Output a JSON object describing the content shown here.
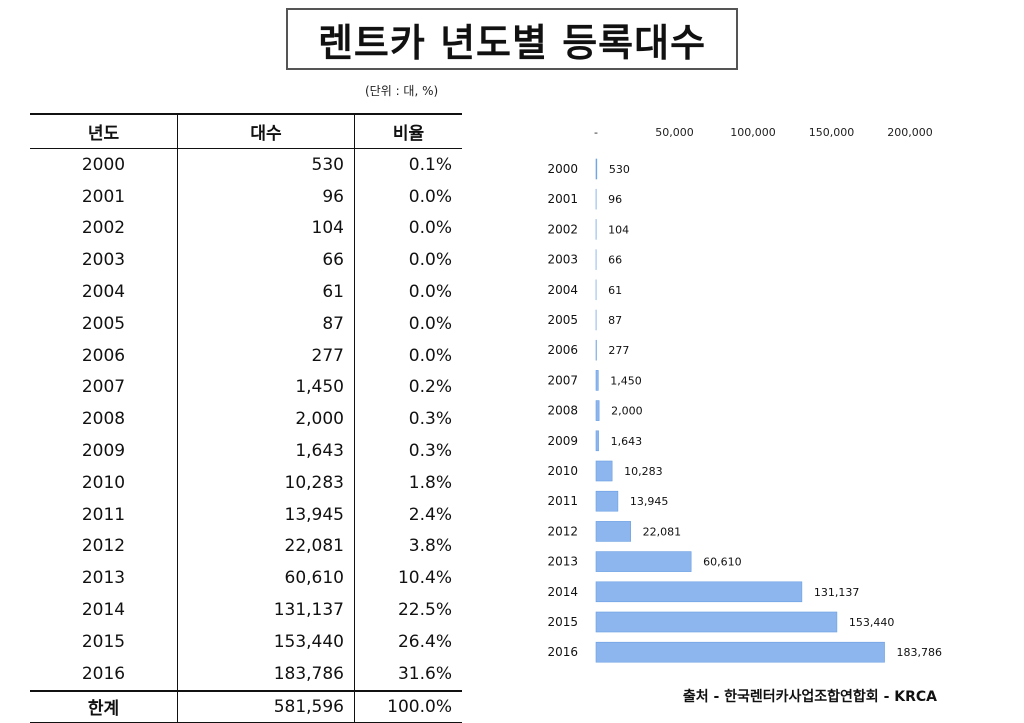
{
  "title": "렌트카 년도별 등록대수",
  "unit_note": "(단위 : 대, %)",
  "table": {
    "headers": [
      "년도",
      "대수",
      "비율"
    ],
    "rows": [
      {
        "year": "2000",
        "count": "530",
        "ratio": "0.1%"
      },
      {
        "year": "2001",
        "count": "96",
        "ratio": "0.0%"
      },
      {
        "year": "2002",
        "count": "104",
        "ratio": "0.0%"
      },
      {
        "year": "2003",
        "count": "66",
        "ratio": "0.0%"
      },
      {
        "year": "2004",
        "count": "61",
        "ratio": "0.0%"
      },
      {
        "year": "2005",
        "count": "87",
        "ratio": "0.0%"
      },
      {
        "year": "2006",
        "count": "277",
        "ratio": "0.0%"
      },
      {
        "year": "2007",
        "count": "1,450",
        "ratio": "0.2%"
      },
      {
        "year": "2008",
        "count": "2,000",
        "ratio": "0.3%"
      },
      {
        "year": "2009",
        "count": "1,643",
        "ratio": "0.3%"
      },
      {
        "year": "2010",
        "count": "10,283",
        "ratio": "1.8%"
      },
      {
        "year": "2011",
        "count": "13,945",
        "ratio": "2.4%"
      },
      {
        "year": "2012",
        "count": "22,081",
        "ratio": "3.8%"
      },
      {
        "year": "2013",
        "count": "60,610",
        "ratio": "10.4%"
      },
      {
        "year": "2014",
        "count": "131,137",
        "ratio": "22.5%"
      },
      {
        "year": "2015",
        "count": "153,440",
        "ratio": "26.4%"
      },
      {
        "year": "2016",
        "count": "183,786",
        "ratio": "31.6%"
      }
    ],
    "total": {
      "year": "한계",
      "count": "581,596",
      "ratio": "100.0%"
    }
  },
  "chart_data": {
    "type": "bar",
    "orientation": "horizontal",
    "categories": [
      "2000",
      "2001",
      "2002",
      "2003",
      "2004",
      "2005",
      "2006",
      "2007",
      "2008",
      "2009",
      "2010",
      "2011",
      "2012",
      "2013",
      "2014",
      "2015",
      "2016"
    ],
    "values": [
      530,
      96,
      104,
      66,
      61,
      87,
      277,
      1450,
      2000,
      1643,
      10283,
      13945,
      22081,
      60610,
      131137,
      153440,
      183786
    ],
    "value_labels": [
      "530",
      "96",
      "104",
      "66",
      "61",
      "87",
      "277",
      "1,450",
      "2,000",
      "1,643",
      "10,283",
      "13,945",
      "22,081",
      "60,610",
      "131,137",
      "153,440",
      "183,786"
    ],
    "x_ticks": [
      0,
      50000,
      100000,
      150000,
      200000
    ],
    "x_tick_labels": [
      "-",
      "50,000",
      "100,000",
      "150,000",
      "200,000"
    ],
    "xlim": [
      0,
      200000
    ],
    "axis_position": "top",
    "grid": false,
    "bar_color": "#8db6ef"
  },
  "source": "출처 - 한국렌터카사업조합연합회 - KRCA"
}
